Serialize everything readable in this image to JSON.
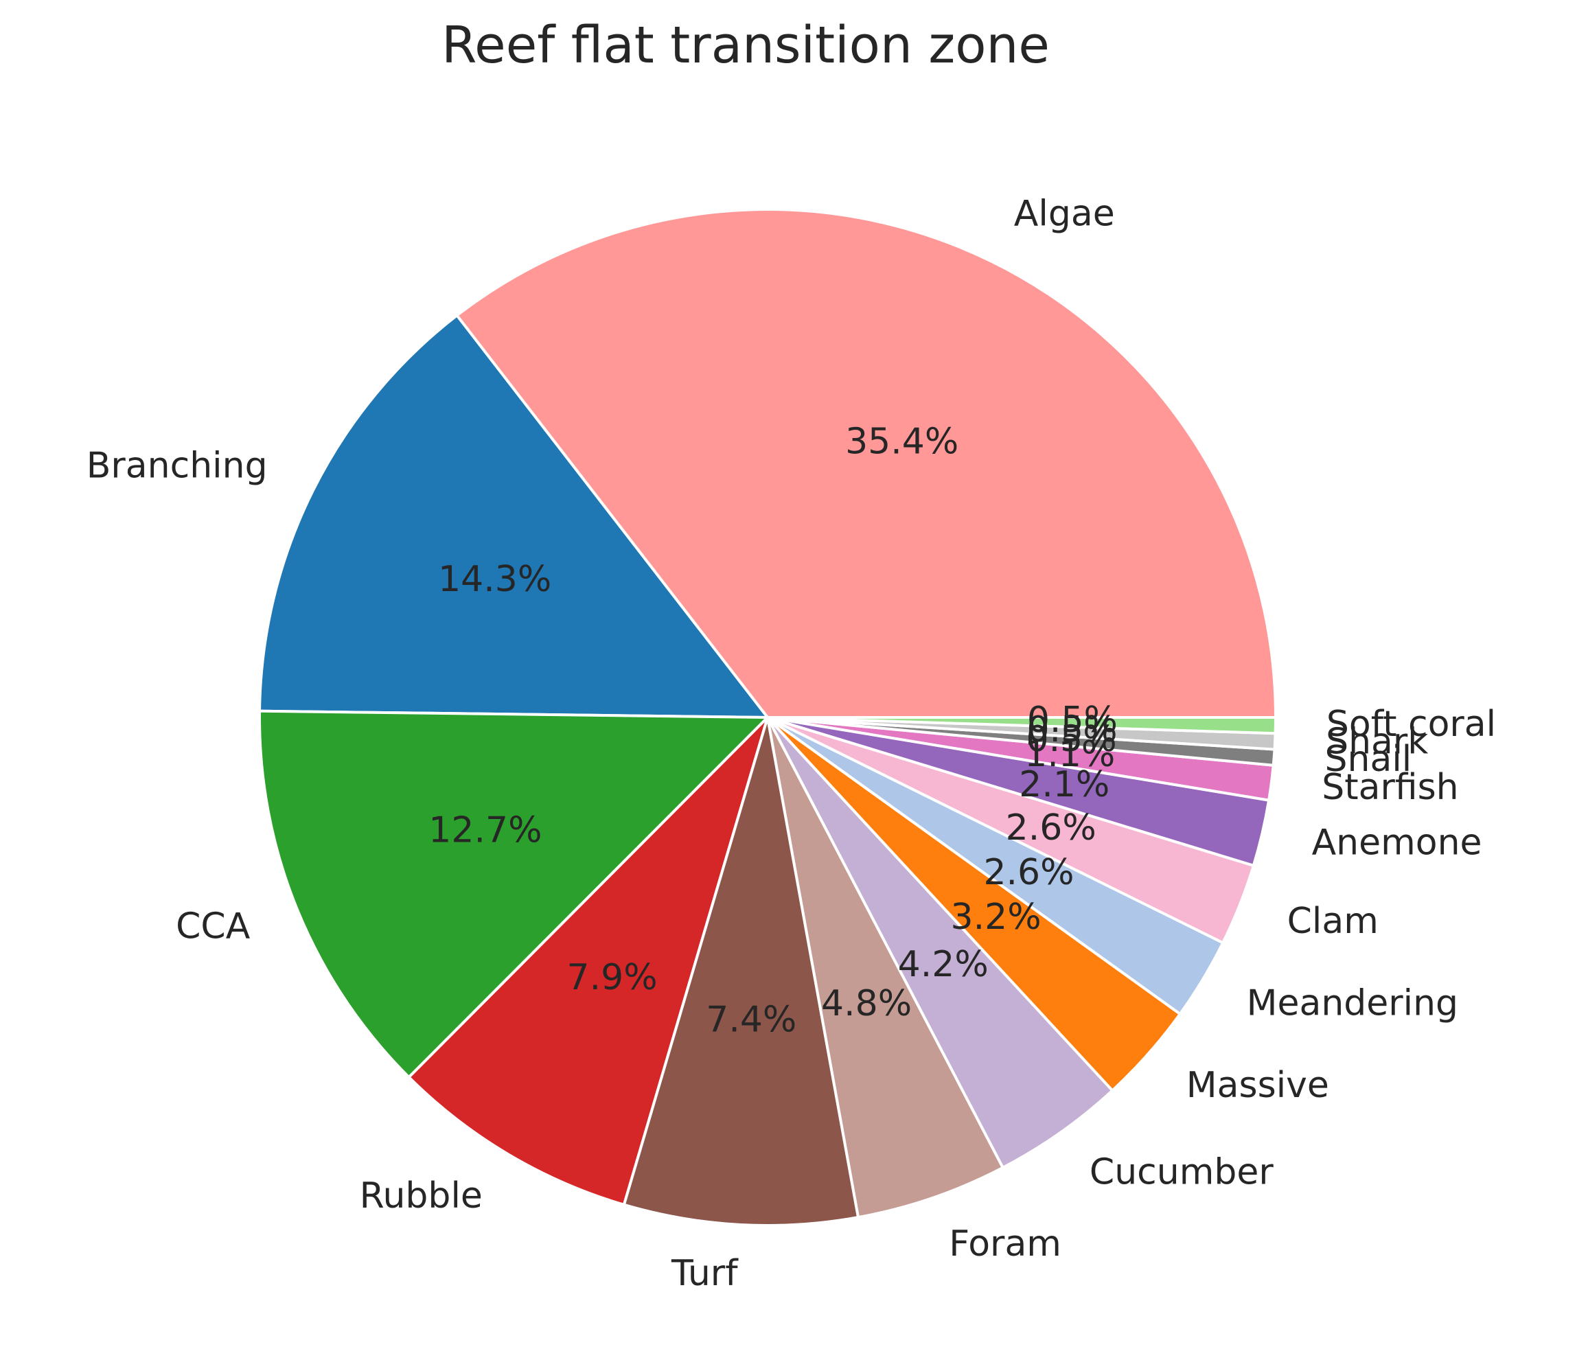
{
  "chart_data": {
    "type": "pie",
    "title": "Reef flat transition zone",
    "categories": [
      "Algae",
      "Branching",
      "CCA",
      "Rubble",
      "Turf",
      "Foram",
      "Cucumber",
      "Massive",
      "Meandering",
      "Clam",
      "Anemone",
      "Starfish",
      "Snail",
      "Shark",
      "Soft coral"
    ],
    "values": [
      35.4,
      14.3,
      12.7,
      7.9,
      7.4,
      4.8,
      4.2,
      3.2,
      2.6,
      2.6,
      2.1,
      1.1,
      0.5,
      0.5,
      0.5
    ],
    "value_labels": [
      "35.4%",
      "14.3%",
      "12.7%",
      "7.9%",
      "7.4%",
      "4.8%",
      "4.2%",
      "3.2%",
      "2.6%",
      "2.6%",
      "2.1%",
      "1.1%",
      "0.5%",
      "0.5%",
      "0.5%"
    ],
    "colors": [
      "#ff9896",
      "#1f77b4",
      "#2ca02c",
      "#d62728",
      "#8c564b",
      "#c49c94",
      "#c5b0d5",
      "#ff7f0e",
      "#aec7e8",
      "#f7b6d2",
      "#9467bd",
      "#e377c2",
      "#7f7f7f",
      "#c7c7c7",
      "#98df8a"
    ],
    "start_angle_deg": 0,
    "direction": "counterclockwise",
    "legend": "none"
  }
}
